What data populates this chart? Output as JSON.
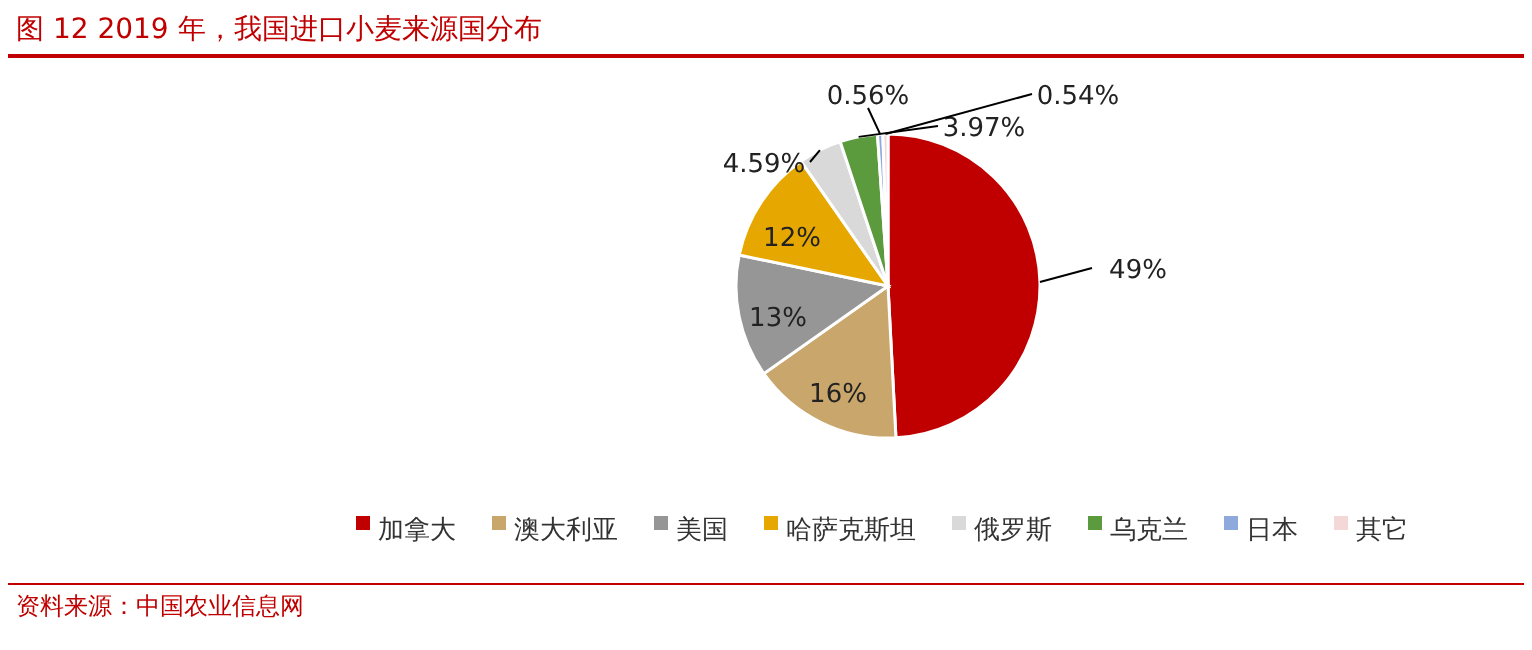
{
  "chart_data": {
    "type": "pie",
    "title": "图 12   2019 年，我国进口小麦来源国分布",
    "categories": [
      "加拿大",
      "澳大利亚",
      "美国",
      "哈萨克斯坦",
      "俄罗斯",
      "乌克兰",
      "日本",
      "其它"
    ],
    "values": [
      49,
      16,
      13,
      12,
      4.59,
      3.97,
      0.56,
      0.54
    ],
    "value_labels": [
      "49%",
      "16%",
      "13%",
      "12%",
      "4.59%",
      "3.97%",
      "0.56%",
      "0.54%"
    ],
    "colors": [
      "#c00000",
      "#c9a66b",
      "#969696",
      "#e6a800",
      "#d9d9d9",
      "#5b9a3d",
      "#8ea9db",
      "#f4d7d7"
    ],
    "legend": "bottom",
    "annotations": [
      "资料来源：中国农业信息网"
    ]
  }
}
